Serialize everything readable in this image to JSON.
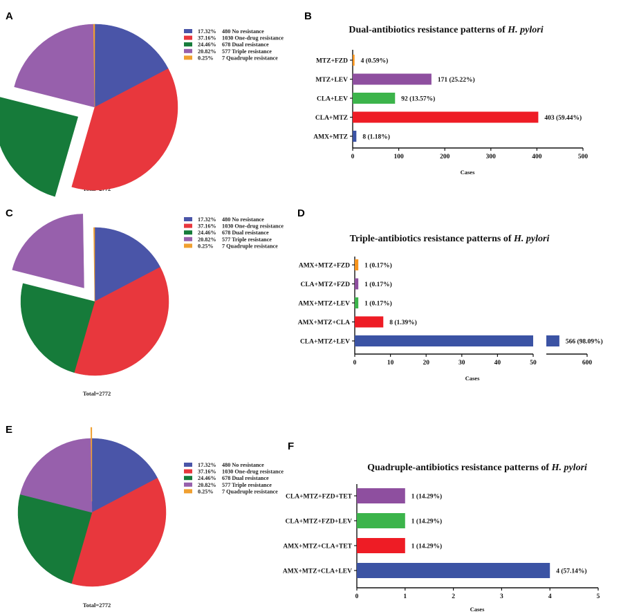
{
  "legend": [
    {
      "pct": "17.32%",
      "text": "480 No resistance",
      "color": "#4a55a8"
    },
    {
      "pct": "37.16%",
      "text": "1030 One-drug resistance",
      "color": "#e8373d"
    },
    {
      "pct": "24.46%",
      "text": "678 Dual resistance",
      "color": "#167b3a"
    },
    {
      "pct": "20.82%",
      "text": "577 Triple resistance",
      "color": "#9760ac"
    },
    {
      "pct": "0.25%",
      "text": "7 Quadruple resistance",
      "color": "#f0a030"
    }
  ],
  "chart_data": [
    {
      "panel": "A",
      "type": "pie",
      "exploded_index": 2,
      "labels": [
        "No resistance",
        "One-drug resistance",
        "Dual resistance",
        "Triple resistance",
        "Quadruple resistance"
      ],
      "values": [
        480,
        1030,
        678,
        577,
        7
      ],
      "colors": [
        "#4a55a8",
        "#e8373d",
        "#167b3a",
        "#9760ac",
        "#f0a030"
      ],
      "total_label": "Total=2772"
    },
    {
      "panel": "B",
      "type": "bar",
      "orientation": "horizontal",
      "title_prefix": "Dual-antibiotics resistance patterns of ",
      "title_italic": "H. pylori",
      "categories": [
        "AMX+MTZ",
        "CLA+MTZ",
        "CLA+LEV",
        "MTZ+LEV",
        "MTZ+FZD"
      ],
      "values": [
        8,
        403,
        92,
        171,
        4
      ],
      "value_labels": [
        "8 (1.18%)",
        "403 (59.44%)",
        "92 (13.57%)",
        "171 (25.22%)",
        "4 (0.59%)"
      ],
      "colors": [
        "#3b53a4",
        "#ee1c25",
        "#3cb44b",
        "#8e4f9f",
        "#f7941d"
      ],
      "xlabel": "Cases",
      "xlim": [
        0,
        500
      ],
      "ticks": [
        0,
        100,
        200,
        300,
        400,
        500
      ]
    },
    {
      "panel": "C",
      "type": "pie",
      "exploded_index": 3,
      "labels": [
        "No resistance",
        "One-drug resistance",
        "Dual resistance",
        "Triple resistance",
        "Quadruple resistance"
      ],
      "values": [
        480,
        1030,
        678,
        577,
        7
      ],
      "colors": [
        "#4a55a8",
        "#e8373d",
        "#167b3a",
        "#9760ac",
        "#f0a030"
      ],
      "total_label": "Total=2772"
    },
    {
      "panel": "D",
      "type": "bar",
      "orientation": "horizontal",
      "broken_axis": [
        50,
        550
      ],
      "title_prefix": "Triple-antibiotics resistance patterns of ",
      "title_italic": "H. pylori",
      "categories": [
        "CLA+MTZ+LEV",
        "AMX+MTZ+CLA",
        "AMX+MTZ+LEV",
        "CLA+MTZ+FZD",
        "AMX+MTZ+FZD"
      ],
      "values": [
        566,
        8,
        1,
        1,
        1
      ],
      "value_labels": [
        "566 (98.09%)",
        "8 (1.39%)",
        "1 (0.17%)",
        "1 (0.17%)",
        "1 (0.17%)"
      ],
      "colors": [
        "#3b53a4",
        "#ee1c25",
        "#3cb44b",
        "#8e4f9f",
        "#f7941d"
      ],
      "xlabel": "Cases",
      "ticks": [
        0,
        10,
        20,
        30,
        40,
        50,
        600
      ]
    },
    {
      "panel": "E",
      "type": "pie",
      "exploded_index": 4,
      "labels": [
        "No resistance",
        "One-drug resistance",
        "Dual resistance",
        "Triple resistance",
        "Quadruple resistance"
      ],
      "values": [
        480,
        1030,
        678,
        577,
        7
      ],
      "colors": [
        "#4a55a8",
        "#e8373d",
        "#167b3a",
        "#9760ac",
        "#f0a030"
      ],
      "total_label": "Total=2772"
    },
    {
      "panel": "F",
      "type": "bar",
      "orientation": "horizontal",
      "title_prefix": "Quadruple-antibiotics resistance patterns of ",
      "title_italic": "H. pylori",
      "categories": [
        "AMX+MTZ+CLA+LEV",
        "AMX+MTZ+CLA+TET",
        "CLA+MTZ+FZD+LEV",
        "CLA+MTZ+FZD+TET"
      ],
      "values": [
        4,
        1,
        1,
        1
      ],
      "value_labels": [
        "4 (57.14%)",
        "1 (14.29%)",
        "1 (14.29%)",
        "1 (14.29%)"
      ],
      "colors": [
        "#3b53a4",
        "#ee1c25",
        "#3cb44b",
        "#8e4f9f"
      ],
      "xlabel": "Cases",
      "xlim": [
        0,
        5
      ],
      "ticks": [
        0,
        1,
        2,
        3,
        4,
        5
      ]
    }
  ]
}
